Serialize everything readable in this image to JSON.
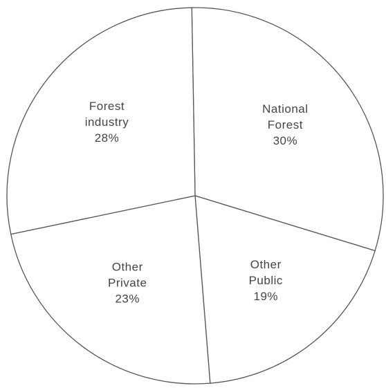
{
  "chart_data": {
    "type": "pie",
    "categories": [
      "National Forest",
      "Other Public",
      "Other Private",
      "Forest industry"
    ],
    "values": [
      30,
      19,
      23,
      28
    ],
    "value_labels": [
      "30%",
      "19%",
      "23%",
      "28%"
    ],
    "color": "#ffffff"
  }
}
